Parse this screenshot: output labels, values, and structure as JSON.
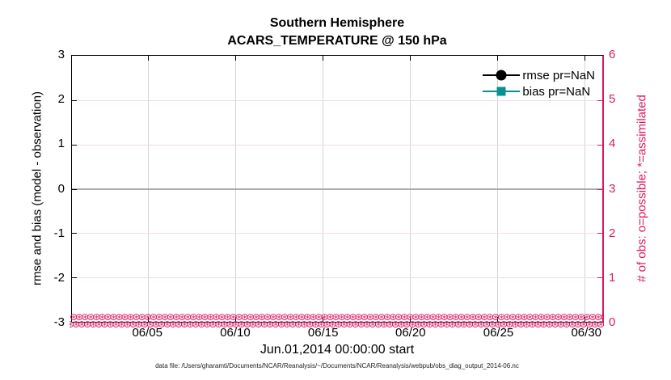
{
  "figure": {
    "title_line1": "Southern Hemisphere",
    "title_line2": "ACARS_TEMPERATURE @ 150 hPa",
    "xlabel": "Jun.01,2014 00:00:00 start",
    "ylabel_left": "rmse and bias (model - observation)",
    "ylabel_right": "# of obs: o=possible; *=assimilated",
    "footer": "data file: /Users/gharamti/Documents/NCAR/Reanalysis/~/Documents/NCAR/Reanalysis/webpub/obs_diag_output_2014-06.nc"
  },
  "legend": {
    "items": [
      {
        "label": "rmse pr=NaN",
        "color": "#000000",
        "marker": "circle"
      },
      {
        "label": "bias pr=NaN",
        "color": "#089191",
        "marker": "square"
      }
    ]
  },
  "colors": {
    "accent_pink": "#d81a60",
    "teal": "#089191",
    "zero_line": "#ababab",
    "grid_vertical": "#d4d4d4",
    "grid_horizontal": "#f6d9e5"
  },
  "obs_band": {
    "glyph": "⊛",
    "rows": 2,
    "glyphs_per_row": 115
  },
  "chart_data": {
    "type": "line",
    "title": "Southern Hemisphere",
    "subtitle": "ACARS_TEMPERATURE @ 150 hPa",
    "xlabel": "Jun.01,2014 00:00:00 start",
    "ylabel_left": "rmse and bias (model - observation)",
    "ylabel_right": "# of obs: o=possible; *=assimilated",
    "x_range": [
      "2014-06-01 00:00:00",
      "2014-07-01 00:00:00"
    ],
    "xticks": [
      "06/05",
      "06/10",
      "06/15",
      "06/20",
      "06/25",
      "06/30"
    ],
    "yticks_left": [
      "3",
      "2",
      "1",
      "0",
      "-1",
      "-2",
      "-3"
    ],
    "yticks_right": [
      "6",
      "5",
      "4",
      "3",
      "2",
      "1",
      "0"
    ],
    "ylim_left": [
      -3,
      3
    ],
    "ylim_right": [
      0,
      6
    ],
    "grid": true,
    "legend_position": "top-right-inside",
    "series": [
      {
        "name": "rmse pr=NaN",
        "axis": "left",
        "color": "#000000",
        "marker": "filled-circle",
        "values": "all NaN - no curve drawn"
      },
      {
        "name": "bias pr=NaN",
        "axis": "left",
        "color": "#089191",
        "marker": "filled-square",
        "values": "all NaN - no curve drawn"
      },
      {
        "name": "# of obs possible (o)",
        "axis": "right",
        "color": "#d81a60",
        "marker": "o",
        "constant_value": 0
      },
      {
        "name": "# of obs assimilated (*)",
        "axis": "right",
        "color": "#d81a60",
        "marker": "*",
        "constant_value": 0
      }
    ],
    "annotations": {
      "zero_line_y": 0,
      "zero_line_color": "#ababab"
    }
  }
}
